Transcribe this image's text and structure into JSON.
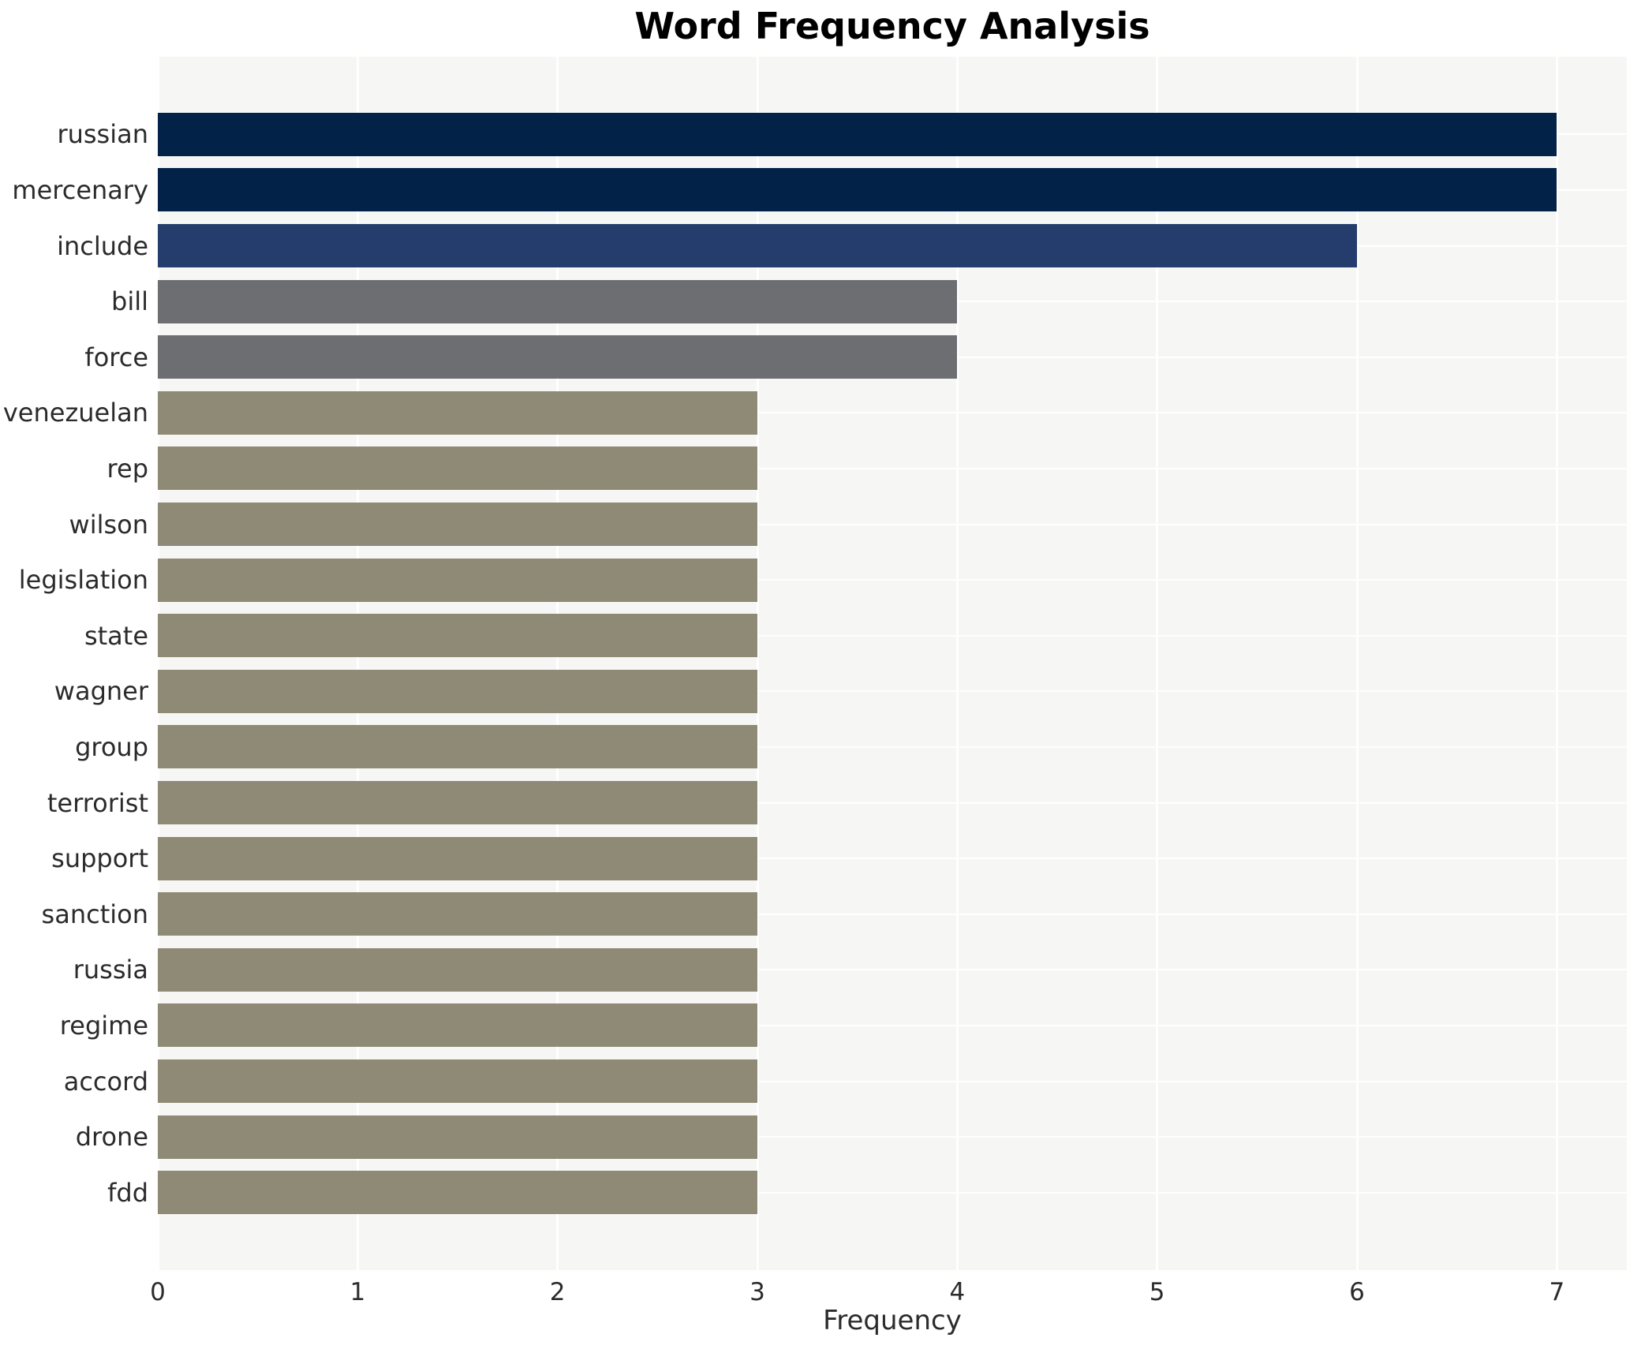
{
  "title": "Word Frequency Analysis",
  "chart_data": {
    "type": "bar",
    "orientation": "horizontal",
    "title": "Word Frequency Analysis",
    "xlabel": "Frequency",
    "ylabel": "",
    "categories": [
      "russian",
      "mercenary",
      "include",
      "bill",
      "force",
      "venezuelan",
      "rep",
      "wilson",
      "legislation",
      "state",
      "wagner",
      "group",
      "terrorist",
      "support",
      "sanction",
      "russia",
      "regime",
      "accord",
      "drone",
      "fdd"
    ],
    "values": [
      7,
      7,
      6,
      4,
      4,
      3,
      3,
      3,
      3,
      3,
      3,
      3,
      3,
      3,
      3,
      3,
      3,
      3,
      3,
      3
    ],
    "bar_colors": [
      "#032248",
      "#032248",
      "#243d6d",
      "#6d6e72",
      "#6d6e72",
      "#8e8a76",
      "#8e8a76",
      "#8e8a76",
      "#8e8a76",
      "#8e8a76",
      "#8e8a76",
      "#8e8a76",
      "#8e8a76",
      "#8e8a76",
      "#8e8a76",
      "#8e8a76",
      "#8e8a76",
      "#8e8a76",
      "#8e8a76",
      "#8e8a76"
    ],
    "xticks": [
      0,
      1,
      2,
      3,
      4,
      5,
      6,
      7
    ],
    "xlim": [
      0,
      7.35
    ],
    "grid": true,
    "legend": false,
    "plot_bg_color": "#f6f6f5",
    "grid_color": "#ffffff",
    "text_color": "#2b2b2b",
    "title_color": "#000000"
  }
}
